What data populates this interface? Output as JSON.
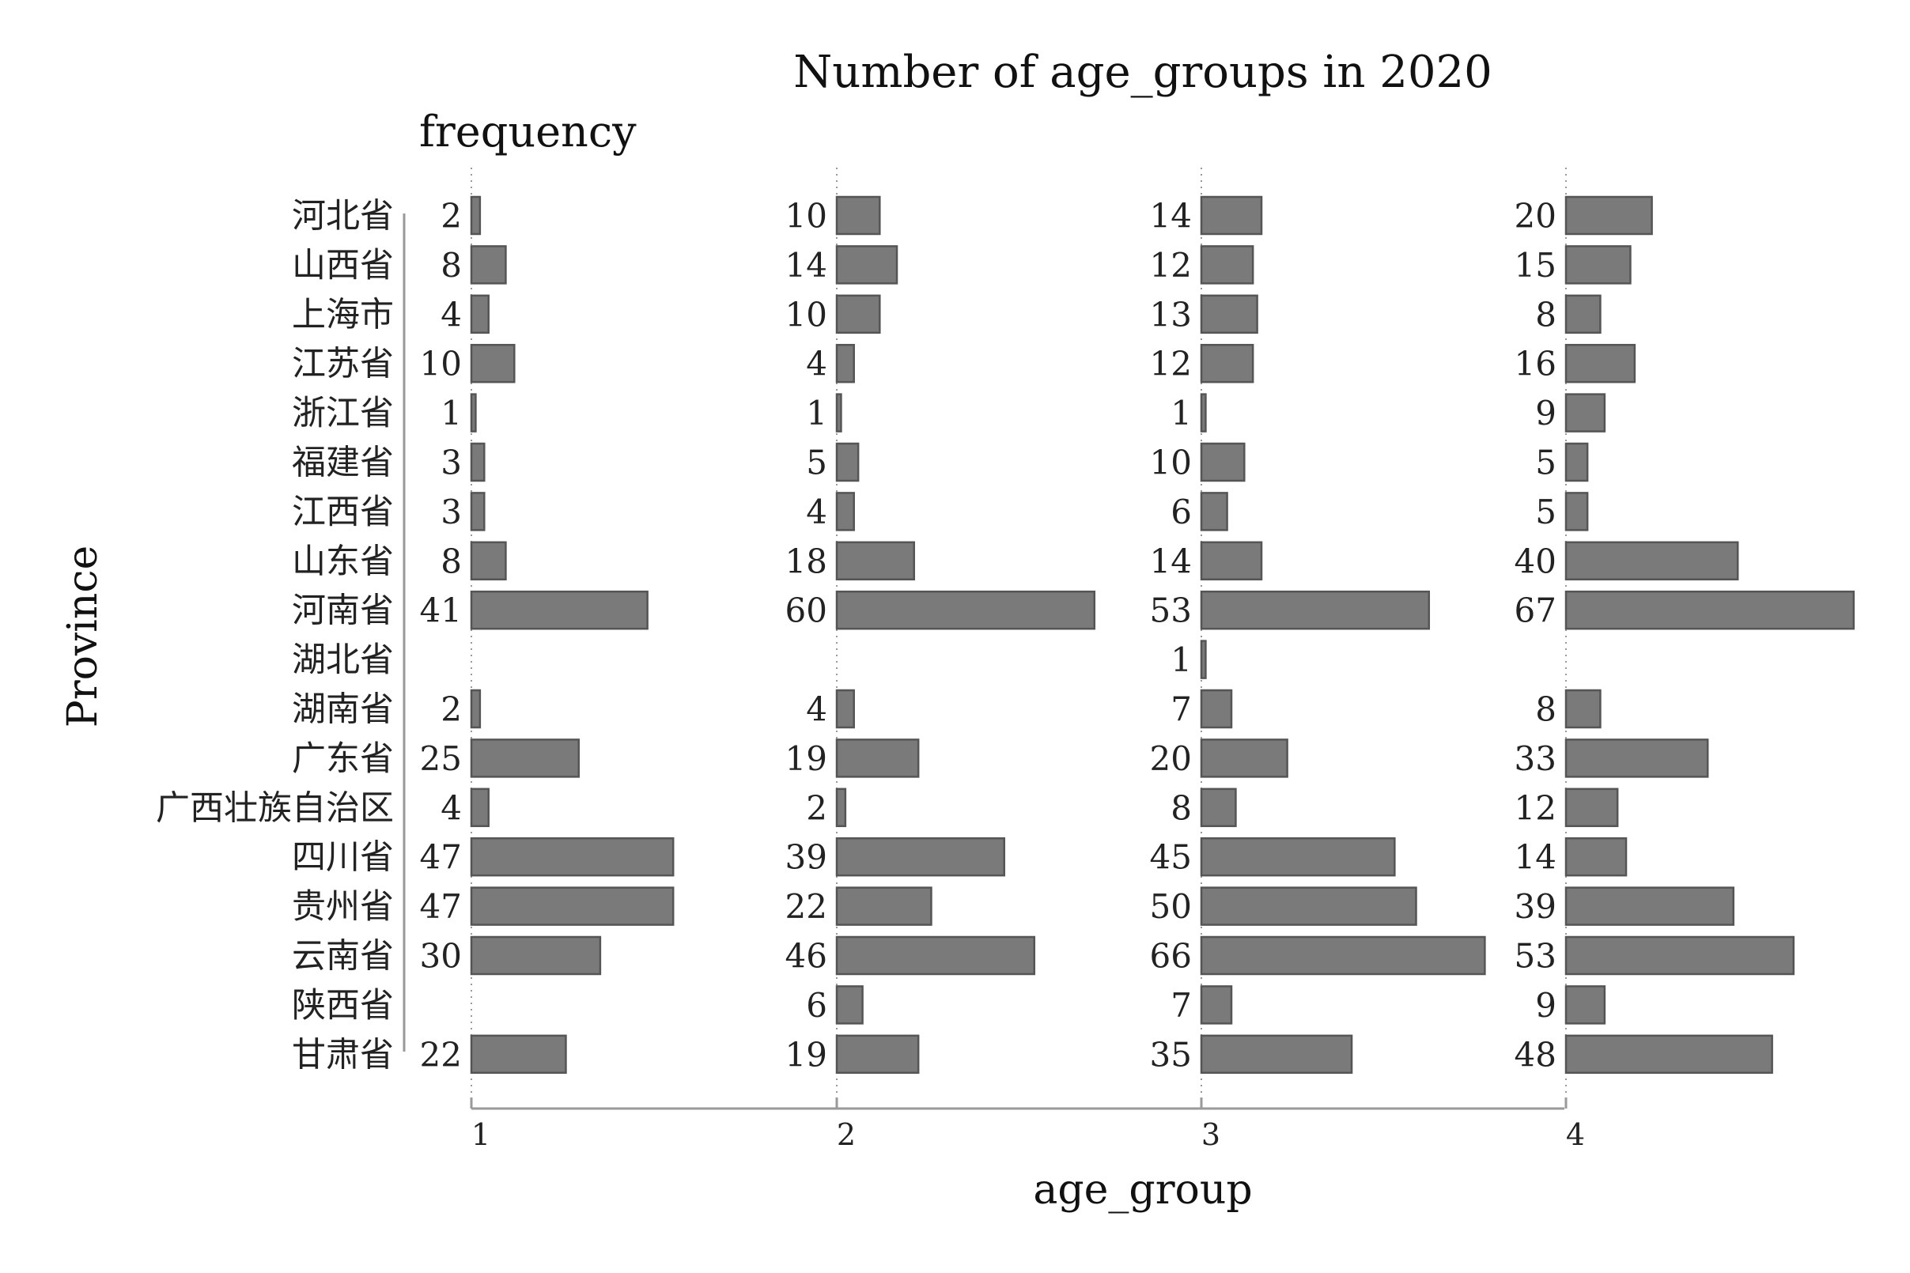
{
  "chart_data": {
    "type": "bar",
    "title": "Number of age_groups in 2020",
    "value_label": "frequency",
    "xlabel": "age_group",
    "ylabel": "Province",
    "panels": [
      "1",
      "2",
      "3",
      "4"
    ],
    "panel_xlim": [
      0,
      70
    ],
    "categories": [
      "河北省",
      "山西省",
      "上海市",
      "江苏省",
      "浙江省",
      "福建省",
      "江西省",
      "山东省",
      "河南省",
      "湖北省",
      "湖南省",
      "广东省",
      "广西壮族自治区",
      "四川省",
      "贵州省",
      "云南省",
      "陕西省",
      "甘肃省"
    ],
    "series": [
      {
        "name": "1",
        "values": [
          2,
          8,
          4,
          10,
          1,
          3,
          3,
          8,
          41,
          null,
          2,
          25,
          4,
          47,
          47,
          30,
          null,
          22
        ]
      },
      {
        "name": "2",
        "values": [
          10,
          14,
          10,
          4,
          1,
          5,
          4,
          18,
          60,
          null,
          4,
          19,
          2,
          39,
          22,
          46,
          6,
          19
        ]
      },
      {
        "name": "3",
        "values": [
          14,
          12,
          13,
          12,
          1,
          10,
          6,
          14,
          53,
          1,
          7,
          20,
          8,
          45,
          50,
          66,
          7,
          35
        ]
      },
      {
        "name": "4",
        "values": [
          20,
          15,
          8,
          16,
          9,
          5,
          5,
          40,
          67,
          null,
          8,
          33,
          12,
          14,
          39,
          53,
          9,
          48
        ]
      }
    ]
  }
}
